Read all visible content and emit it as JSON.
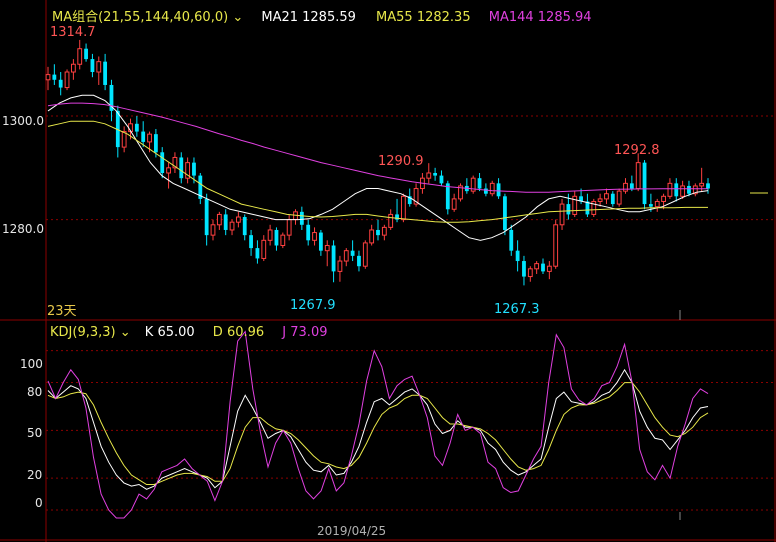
{
  "colors": {
    "background": "#000000",
    "up": "#ff4040",
    "down": "#00e5ff",
    "ma21": "#ffffff",
    "ma55": "#e8e84a",
    "ma144": "#e040e0",
    "k": "#ffffff",
    "d": "#e8e84a",
    "j": "#e040e0",
    "grid": "#8b0000",
    "frame": "#8b0000",
    "annot_high": "#ff5555",
    "annot_low": "#22e0ff",
    "days": "#e8c84a"
  },
  "legend_ma": {
    "name": "MA组合(21,55,144,40,60,0)",
    "dropdown_icon": "chevron-down-icon",
    "ma21": "MA21 1285.59",
    "ma55": "MA55 1282.35",
    "ma144": "MA144 1285.94"
  },
  "legend_kdj": {
    "name": "KDJ(9,3,3)",
    "dropdown_icon": "chevron-down-icon",
    "k": "K 65.00",
    "d": "D 60.96",
    "j": "J 73.09"
  },
  "period_label": "23天",
  "x_axis_label": "2019/04/25",
  "price_axis": {
    "range": [
      1261,
      1317
    ],
    "ticks": [
      "1300.0",
      "1280.0"
    ],
    "tick_values": [
      1300,
      1280
    ]
  },
  "kdj_axis": {
    "range": [
      -5,
      118
    ],
    "ticks": [
      "100",
      "80",
      "50",
      "20",
      "0"
    ],
    "tick_values": [
      100,
      80,
      50,
      20,
      0
    ]
  },
  "chart_data": [
    {
      "type": "candlestick",
      "title": "",
      "grid": true,
      "annotations": [
        {
          "text": "1314.7",
          "kind": "high"
        },
        {
          "text": "1290.9",
          "kind": "high"
        },
        {
          "text": "1292.8",
          "kind": "high"
        },
        {
          "text": "1267.9",
          "kind": "low"
        },
        {
          "text": "1267.3",
          "kind": "low"
        }
      ],
      "candles": [
        [
          1307,
          1309.5,
          1305,
          1308
        ],
        [
          1308,
          1310,
          1306,
          1307
        ],
        [
          1307,
          1308.5,
          1304,
          1305.5
        ],
        [
          1305.5,
          1309,
          1305,
          1308.5
        ],
        [
          1308.5,
          1311,
          1307,
          1310
        ],
        [
          1310,
          1314.7,
          1309,
          1313
        ],
        [
          1313,
          1314,
          1310.5,
          1311
        ],
        [
          1311,
          1312,
          1307.5,
          1308.5
        ],
        [
          1308.5,
          1311.5,
          1306,
          1310.5
        ],
        [
          1310.5,
          1312,
          1305,
          1306
        ],
        [
          1306,
          1307,
          1299,
          1301
        ],
        [
          1301,
          1302,
          1292,
          1294
        ],
        [
          1294,
          1298,
          1293,
          1297
        ],
        [
          1297,
          1299.5,
          1295.5,
          1298.5
        ],
        [
          1298.5,
          1300,
          1296,
          1297
        ],
        [
          1297,
          1299,
          1294,
          1295
        ],
        [
          1295,
          1297,
          1293,
          1296.5
        ],
        [
          1296.5,
          1297.5,
          1292,
          1293
        ],
        [
          1293,
          1294,
          1288,
          1289
        ],
        [
          1289,
          1291,
          1286,
          1290
        ],
        [
          1290,
          1293,
          1289,
          1292
        ],
        [
          1292,
          1293,
          1287,
          1288
        ],
        [
          1288,
          1292,
          1287,
          1291
        ],
        [
          1291,
          1292,
          1287,
          1288.5
        ],
        [
          1288.5,
          1289,
          1283,
          1284
        ],
        [
          1284,
          1285,
          1275,
          1277
        ],
        [
          1277,
          1280,
          1276,
          1279
        ],
        [
          1279,
          1281.5,
          1278,
          1281
        ],
        [
          1281,
          1282,
          1277,
          1278
        ],
        [
          1278,
          1280,
          1277,
          1279.5
        ],
        [
          1279.5,
          1281.5,
          1278.5,
          1280.5
        ],
        [
          1280.5,
          1281,
          1276,
          1277
        ],
        [
          1277,
          1278,
          1273,
          1274.5
        ],
        [
          1274.5,
          1276,
          1271.5,
          1272.5
        ],
        [
          1272.5,
          1277,
          1272,
          1276
        ],
        [
          1276,
          1279,
          1275,
          1278
        ],
        [
          1278,
          1278.5,
          1274,
          1275
        ],
        [
          1275,
          1277.5,
          1274.5,
          1277
        ],
        [
          1277,
          1281,
          1276,
          1280
        ],
        [
          1280,
          1282,
          1279,
          1281.5
        ],
        [
          1281.5,
          1282.5,
          1278,
          1279
        ],
        [
          1279,
          1280,
          1275,
          1276
        ],
        [
          1276,
          1278.5,
          1275,
          1277.5
        ],
        [
          1277.5,
          1278,
          1273,
          1274
        ],
        [
          1274,
          1276,
          1271,
          1275
        ],
        [
          1275,
          1276,
          1267.9,
          1270
        ],
        [
          1270,
          1273,
          1268,
          1272
        ],
        [
          1272,
          1274.5,
          1271,
          1274
        ],
        [
          1274,
          1276,
          1272,
          1273
        ],
        [
          1273,
          1274,
          1270,
          1271
        ],
        [
          1271,
          1276,
          1270.5,
          1275.5
        ],
        [
          1275.5,
          1279,
          1275,
          1278
        ],
        [
          1278,
          1280,
          1276,
          1277
        ],
        [
          1277,
          1279,
          1276,
          1278.5
        ],
        [
          1278.5,
          1282,
          1278,
          1281
        ],
        [
          1281,
          1284,
          1279.5,
          1280
        ],
        [
          1280,
          1285,
          1279.5,
          1284.5
        ],
        [
          1284.5,
          1286,
          1282.5,
          1283
        ],
        [
          1283,
          1287,
          1282.5,
          1286
        ],
        [
          1286,
          1289,
          1285,
          1288
        ],
        [
          1288,
          1290.9,
          1287,
          1289
        ],
        [
          1289,
          1290,
          1287.5,
          1288.5
        ],
        [
          1288.5,
          1289.5,
          1286.5,
          1287
        ],
        [
          1287,
          1287.5,
          1281,
          1282
        ],
        [
          1282,
          1285,
          1281.5,
          1284
        ],
        [
          1284,
          1287,
          1283.5,
          1286.5
        ],
        [
          1286.5,
          1288,
          1285,
          1285.5
        ],
        [
          1285.5,
          1288.5,
          1285,
          1288
        ],
        [
          1288,
          1289,
          1285.5,
          1286
        ],
        [
          1286,
          1287,
          1284.5,
          1285
        ],
        [
          1285,
          1287.5,
          1284.5,
          1287
        ],
        [
          1287,
          1288,
          1284,
          1284.5
        ],
        [
          1284.5,
          1285,
          1277,
          1278
        ],
        [
          1278,
          1279,
          1273,
          1274
        ],
        [
          1274,
          1276,
          1270,
          1272
        ],
        [
          1272,
          1273,
          1267.3,
          1269
        ],
        [
          1269,
          1271,
          1268,
          1270.5
        ],
        [
          1270.5,
          1272,
          1269.5,
          1271.5
        ],
        [
          1271.5,
          1272.5,
          1269.5,
          1270
        ],
        [
          1270,
          1272,
          1268.5,
          1271
        ],
        [
          1271,
          1280,
          1270.5,
          1279
        ],
        [
          1279,
          1284,
          1278,
          1283
        ],
        [
          1283,
          1285,
          1280,
          1281
        ],
        [
          1281,
          1285.5,
          1280.5,
          1284.5
        ],
        [
          1284.5,
          1286,
          1283,
          1283.5
        ],
        [
          1283.5,
          1285,
          1280.5,
          1281
        ],
        [
          1281,
          1284,
          1280.5,
          1283.5
        ],
        [
          1283.5,
          1285,
          1282.5,
          1284
        ],
        [
          1284,
          1286,
          1283,
          1285
        ],
        [
          1285,
          1285.5,
          1282.5,
          1283
        ],
        [
          1283,
          1286,
          1282.5,
          1285.5
        ],
        [
          1285.5,
          1288,
          1285,
          1287
        ],
        [
          1287,
          1288.5,
          1285.5,
          1286
        ],
        [
          1286,
          1292.8,
          1285.5,
          1291
        ],
        [
          1291,
          1291.5,
          1282,
          1283
        ],
        [
          1283,
          1285,
          1281.5,
          1282.5
        ],
        [
          1282.5,
          1284,
          1281.5,
          1283.5
        ],
        [
          1283.5,
          1285,
          1282,
          1284.5
        ],
        [
          1284.5,
          1288,
          1284,
          1287
        ],
        [
          1287,
          1288,
          1283.5,
          1284.5
        ],
        [
          1284.5,
          1287.5,
          1284,
          1286.5
        ],
        [
          1286.5,
          1287.5,
          1284.5,
          1285
        ],
        [
          1285,
          1287,
          1284.5,
          1286.5
        ],
        [
          1286.5,
          1290,
          1285.5,
          1287
        ],
        [
          1287,
          1288,
          1285,
          1286
        ]
      ],
      "series": [
        {
          "name": "MA21",
          "values": [
            1301,
            1302.5,
            1303.5,
            1304,
            1304,
            1303,
            1301,
            1298,
            1294.5,
            1291,
            1288.5,
            1287,
            1286,
            1285,
            1284,
            1283,
            1282,
            1281.5,
            1281,
            1280.5,
            1280,
            1280,
            1280,
            1280.2,
            1281,
            1282,
            1283.5,
            1285,
            1286,
            1286,
            1285.5,
            1285,
            1284,
            1282.5,
            1281,
            1279.5,
            1278,
            1276.5,
            1276,
            1276.5,
            1277.5,
            1279,
            1280.5,
            1282.5,
            1284,
            1284.5,
            1284,
            1283.5,
            1283,
            1282.5,
            1282,
            1281.5,
            1281.5,
            1282,
            1282.5,
            1283.5,
            1284.5,
            1285.3,
            1285.6
          ]
        },
        {
          "name": "MA55",
          "values": [
            1298,
            1298.5,
            1299,
            1299,
            1299,
            1298.5,
            1297.5,
            1296.5,
            1295,
            1293.5,
            1292,
            1290.5,
            1289,
            1287.5,
            1286,
            1285,
            1284,
            1283,
            1282.5,
            1282,
            1281.5,
            1281,
            1280.8,
            1280.6,
            1280.5,
            1280.6,
            1280.8,
            1281,
            1281,
            1280.7,
            1280.4,
            1280.2,
            1280,
            1279.8,
            1279.6,
            1279.5,
            1279.5,
            1279.6,
            1279.8,
            1280,
            1280.3,
            1280.6,
            1280.9,
            1281.2,
            1281.5,
            1281.6,
            1281.7,
            1281.8,
            1281.9,
            1282,
            1282.1,
            1282.2,
            1282.2,
            1282.3,
            1282.3,
            1282.3,
            1282.35,
            1282.35,
            1282.35
          ]
        },
        {
          "name": "MA144",
          "values": [
            1302,
            1302.3,
            1302.5,
            1302.5,
            1302.4,
            1302.2,
            1301.8,
            1301.3,
            1300.8,
            1300.3,
            1299.8,
            1299.2,
            1298.6,
            1298,
            1297.3,
            1296.6,
            1296,
            1295.3,
            1294.7,
            1294,
            1293.4,
            1292.8,
            1292.2,
            1291.6,
            1291,
            1290.5,
            1290,
            1289.5,
            1289,
            1288.5,
            1288.1,
            1287.7,
            1287.3,
            1287,
            1286.7,
            1286.4,
            1286.2,
            1286,
            1285.8,
            1285.6,
            1285.5,
            1285.4,
            1285.3,
            1285.3,
            1285.3,
            1285.4,
            1285.5,
            1285.6,
            1285.7,
            1285.8,
            1285.85,
            1285.9,
            1285.92,
            1285.93,
            1285.94,
            1285.94,
            1285.94,
            1285.94,
            1285.94
          ]
        }
      ]
    },
    {
      "type": "line",
      "title": "",
      "grid": true,
      "ylim": [
        0,
        100
      ],
      "series": [
        {
          "name": "K",
          "values": [
            75,
            70,
            74,
            78,
            76,
            70,
            55,
            40,
            30,
            22,
            17,
            15,
            16,
            13,
            15,
            20,
            22,
            24,
            26,
            24,
            22,
            20,
            14,
            18,
            40,
            62,
            72,
            64,
            55,
            45,
            48,
            50,
            46,
            38,
            30,
            25,
            24,
            28,
            22,
            23,
            30,
            40,
            55,
            68,
            70,
            66,
            70,
            74,
            76,
            72,
            66,
            54,
            48,
            50,
            56,
            52,
            52,
            50,
            42,
            38,
            30,
            25,
            22,
            24,
            28,
            32,
            52,
            70,
            74,
            68,
            67,
            66,
            68,
            72,
            74,
            80,
            88,
            80,
            62,
            52,
            45,
            44,
            38,
            44,
            50,
            58,
            64,
            65
          ]
        },
        {
          "name": "D",
          "values": [
            72,
            70,
            71,
            73,
            74,
            73,
            66,
            55,
            45,
            36,
            28,
            22,
            19,
            16,
            16,
            18,
            20,
            22,
            23,
            23,
            22,
            21,
            18,
            18,
            26,
            40,
            52,
            58,
            58,
            54,
            51,
            50,
            48,
            44,
            39,
            34,
            30,
            29,
            27,
            26,
            28,
            33,
            42,
            52,
            60,
            64,
            66,
            70,
            72,
            72,
            70,
            64,
            58,
            54,
            54,
            53,
            52,
            51,
            48,
            44,
            38,
            32,
            27,
            25,
            26,
            28,
            38,
            50,
            60,
            64,
            66,
            66,
            67,
            69,
            71,
            75,
            80,
            80,
            74,
            66,
            58,
            52,
            47,
            46,
            48,
            52,
            58,
            60.96
          ]
        },
        {
          "name": "J",
          "values": [
            81,
            70,
            80,
            88,
            82,
            64,
            33,
            10,
            0,
            -5,
            -5,
            0,
            10,
            7,
            13,
            24,
            26,
            28,
            32,
            26,
            22,
            18,
            6,
            18,
            68,
            106,
            112,
            76,
            49,
            27,
            42,
            50,
            42,
            26,
            12,
            7,
            12,
            26,
            12,
            17,
            34,
            54,
            81,
            100,
            90,
            70,
            78,
            82,
            84,
            72,
            58,
            34,
            28,
            42,
            60,
            50,
            52,
            48,
            30,
            26,
            14,
            11,
            12,
            22,
            32,
            40,
            80,
            110,
            102,
            76,
            69,
            66,
            70,
            78,
            80,
            90,
            104,
            80,
            38,
            24,
            19,
            28,
            20,
            40,
            54,
            70,
            76,
            73.09
          ]
        }
      ]
    }
  ]
}
